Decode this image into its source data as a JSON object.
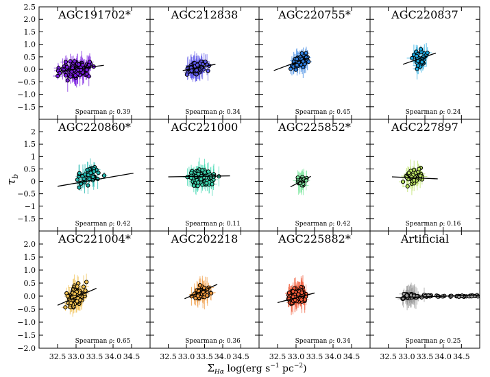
{
  "figure": {
    "xlabel": "Σ_Hα log(erg s⁻¹ pc⁻²)",
    "ylabel": "τ_b",
    "xlabel_parts": {
      "sigma": "Σ",
      "sub": "Hα",
      "rest": " log(erg s",
      "exp1": "−1",
      "mid": " pc",
      "exp2": "−2",
      "end": ")"
    },
    "ylabel_parts": {
      "tau": "τ",
      "sub": "b"
    },
    "xlim": [
      32.0,
      35.0
    ],
    "ylim": [
      -2.0,
      2.5
    ],
    "xticks": [
      32.5,
      33.0,
      33.5,
      34.0,
      34.5
    ],
    "xtick_labels": [
      "32.5",
      "33.0",
      "33.5",
      "34.0",
      "34.5"
    ],
    "yticks_top": [
      -1.5,
      -1.0,
      -0.5,
      0.0,
      0.5,
      1.0,
      1.5,
      2.0,
      2.5
    ],
    "ytick_labels_top": [
      "−1.5",
      "−1.0",
      "−0.5",
      "0.0",
      "0.5",
      "1.0",
      "1.5",
      "2.0",
      "2.5"
    ],
    "yticks_mid": [
      -1.5,
      -1.0,
      -0.5,
      0.0,
      0.5,
      1.0,
      1.5,
      2.0
    ],
    "ytick_labels_mid": [
      "−1.5",
      "−1",
      "−0.5",
      "0",
      "0.5",
      "1",
      "1.5",
      "2"
    ],
    "yticks_bot": [
      -2.0,
      -1.5,
      -1.0,
      -0.5,
      0.0,
      0.5,
      1.0,
      1.5,
      2.0
    ],
    "ytick_labels_bot": [
      "−2.0",
      "−1.5",
      "−1.0",
      "−0.5",
      "0.0",
      "0.5",
      "1.0",
      "1.5",
      "2.0"
    ],
    "spearman_prefix": "Spearman ρ: "
  },
  "chart_data": [
    {
      "type": "scatter",
      "title": "AGC191702*",
      "spearman": "0.39",
      "color": "#7b1fe0",
      "x_center": 33.0,
      "x_spread": 0.55,
      "y_center": 0.0,
      "y_spread": 0.45,
      "n": 110,
      "fit": {
        "x": [
          32.55,
          33.75
        ],
        "y": [
          -0.08,
          0.16
        ]
      }
    },
    {
      "type": "scatter",
      "title": "AGC212838",
      "spearman": "0.34",
      "color": "#5b55e8",
      "x_center": 33.3,
      "x_spread": 0.4,
      "y_center": 0.05,
      "y_spread": 0.3,
      "n": 95,
      "fit": {
        "x": [
          32.9,
          33.8
        ],
        "y": [
          -0.05,
          0.2
        ]
      }
    },
    {
      "type": "scatter",
      "title": "AGC220755*",
      "spearman": "0.45",
      "color": "#2f7fe0",
      "x_center": 33.1,
      "x_spread": 0.3,
      "y_center": 0.3,
      "y_spread": 0.45,
      "n": 55,
      "fit": {
        "x": [
          32.4,
          33.3
        ],
        "y": [
          -0.05,
          0.45
        ]
      }
    },
    {
      "type": "scatter",
      "title": "AGC220837",
      "spearman": "0.24",
      "color": "#1aa8e0",
      "x_center": 33.35,
      "x_spread": 0.25,
      "y_center": 0.4,
      "y_spread": 0.45,
      "n": 35,
      "fit": {
        "x": [
          32.9,
          33.8
        ],
        "y": [
          0.2,
          0.65
        ]
      }
    },
    {
      "type": "scatter",
      "title": "AGC220860*",
      "spearman": "0.42",
      "color": "#22b8b0",
      "x_center": 33.4,
      "x_spread": 0.6,
      "y_center": 0.25,
      "y_spread": 0.5,
      "n": 40,
      "fit": {
        "x": [
          32.5,
          34.55
        ],
        "y": [
          -0.2,
          0.33
        ]
      }
    },
    {
      "type": "scatter",
      "title": "AGC221000",
      "spearman": "0.11",
      "color": "#3ed8b0",
      "x_center": 33.4,
      "x_spread": 0.55,
      "y_center": 0.15,
      "y_spread": 0.45,
      "n": 85,
      "fit": {
        "x": [
          32.5,
          34.2
        ],
        "y": [
          0.18,
          0.22
        ]
      }
    },
    {
      "type": "scatter",
      "title": "AGC225852*",
      "spearman": "0.42",
      "color": "#7ee8a0",
      "x_center": 33.15,
      "x_spread": 0.18,
      "y_center": 0.0,
      "y_spread": 0.25,
      "n": 30,
      "fit": {
        "x": [
          32.85,
          33.4
        ],
        "y": [
          -0.22,
          0.2
        ]
      }
    },
    {
      "type": "scatter",
      "title": "AGC227897",
      "spearman": "0.16",
      "color": "#b8e060",
      "x_center": 33.2,
      "x_spread": 0.35,
      "y_center": 0.15,
      "y_spread": 0.55,
      "n": 40,
      "fit": {
        "x": [
          32.6,
          33.85
        ],
        "y": [
          0.18,
          0.1
        ]
      }
    },
    {
      "type": "scatter",
      "title": "AGC221004*",
      "spearman": "0.65",
      "color": "#f0c050",
      "x_center": 33.0,
      "x_spread": 0.35,
      "y_center": 0.0,
      "y_spread": 0.5,
      "n": 120,
      "fit": {
        "x": [
          32.5,
          33.55
        ],
        "y": [
          -0.35,
          0.3
        ]
      }
    },
    {
      "type": "scatter",
      "title": "AGC202218",
      "spearman": "0.36",
      "color": "#f09a40",
      "x_center": 33.4,
      "x_spread": 0.3,
      "y_center": 0.15,
      "y_spread": 0.35,
      "n": 50,
      "fit": {
        "x": [
          32.95,
          33.85
        ],
        "y": [
          -0.1,
          0.45
        ]
      }
    },
    {
      "type": "scatter",
      "title": "AGC225882*",
      "spearman": "0.34",
      "color": "#f05a38",
      "x_center": 33.05,
      "x_spread": 0.35,
      "y_center": 0.0,
      "y_spread": 0.45,
      "n": 95,
      "fit": {
        "x": [
          32.5,
          33.5
        ],
        "y": [
          -0.25,
          0.12
        ]
      }
    },
    {
      "type": "scatter",
      "title": "Artificial",
      "spearman": "0.25",
      "color": "#9a9a9a",
      "x_center": 33.1,
      "x_spread": 0.3,
      "y_center": 0.0,
      "y_spread": 0.12,
      "n": 110,
      "fit": {
        "x": [
          32.7,
          35.0
        ],
        "y": [
          -0.06,
          0.04
        ]
      }
    }
  ]
}
